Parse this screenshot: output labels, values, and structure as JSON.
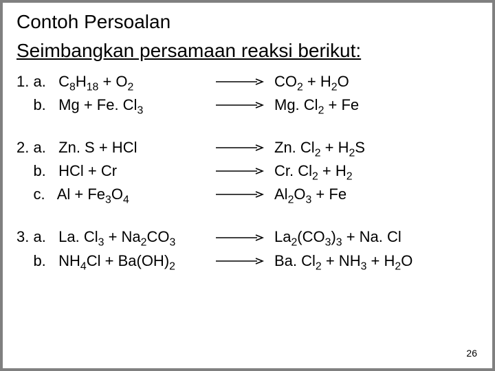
{
  "title": "Contoh Persoalan",
  "subtitle": "Seimbangkan persamaan reaksi berikut:",
  "page_number": "26",
  "arrow": {
    "stroke": "#000000",
    "width": 70,
    "height": 10,
    "stroke_width": 1.6
  },
  "groups": [
    {
      "rows": [
        {
          "num": "1. a.",
          "lhs": "C<sub>8</sub>H<sub>18</sub>  +  O<sub>2</sub>",
          "rhs": "CO<sub>2</sub>    +  H<sub>2</sub>O"
        },
        {
          "num": "    b.",
          "lhs": "Mg      +  Fe. Cl<sub>3</sub>",
          "rhs": "Mg. Cl<sub>2</sub> +    Fe"
        }
      ]
    },
    {
      "rows": [
        {
          "num": "2. a.",
          "lhs": "Zn. S +  HCl",
          "rhs": " Zn. Cl<sub>2</sub> +  H<sub>2</sub>S"
        },
        {
          "num": "    b.",
          "lhs": "HCl +  Cr",
          "rhs": "Cr. Cl<sub>2</sub> +   H<sub>2</sub>"
        },
        {
          "num": "    c.",
          "lhs": "Al +  Fe<sub>3</sub>O<sub>4</sub>",
          "rhs": " Al<sub>2</sub>O<sub>3</sub> +   Fe"
        }
      ]
    },
    {
      "rows": [
        {
          "num": "3. a.",
          "lhs": "La. Cl<sub>3</sub>  +  Na<sub>2</sub>CO<sub>3</sub>",
          "rhs": "La<sub>2</sub>(CO<sub>3</sub>)<sub>3</sub> +  Na. Cl"
        },
        {
          "num": "    b.",
          "lhs": "NH<sub>4</sub>Cl  +  Ba(OH)<sub>2</sub>",
          "rhs": " Ba. Cl<sub>2</sub>  +  NH<sub>3</sub> +  H<sub>2</sub>O"
        }
      ]
    }
  ]
}
